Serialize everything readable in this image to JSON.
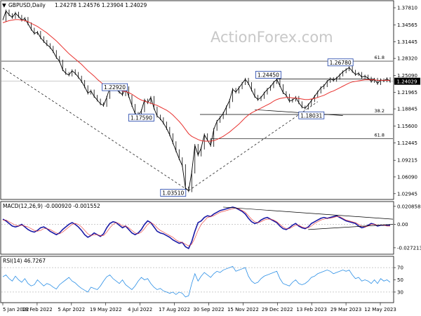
{
  "header": {
    "symbol": "GBPUSD,Daily",
    "ohlc": "1.24278 1.24576 1.23904 1.24029",
    "macd_label": "MACD(12,26,9) -0.000920 -0.001552",
    "rsi_label": "RSI(14) 46.7267"
  },
  "watermark": "ActionForex.com",
  "chart_data": [
    {
      "type": "line",
      "name": "price",
      "y_ticks": [
        "1.37810",
        "1.34565",
        "1.31445",
        "1.28320",
        "1.25090",
        "1.21965",
        "1.18845",
        "1.15600",
        "1.12445",
        "1.09215",
        "1.06090",
        "1.02945"
      ],
      "current_price": "1.24029",
      "ylim": [
        1.02,
        1.39
      ],
      "x_ticks": [
        "5 Jan 2022",
        "18 Feb 2022",
        "5 Apr 2022",
        "19 May 2022",
        "4 Jul 2022",
        "17 Aug 2022",
        "30 Sep 2022",
        "15 Nov 2022",
        "29 Dec 2022",
        "13 Feb 2023",
        "29 Mar 2023",
        "12 May 2023"
      ],
      "series": [
        {
          "values": [
            1.355,
            1.372,
            1.365,
            1.36,
            1.368,
            1.362,
            1.355,
            1.358,
            1.348,
            1.338,
            1.33,
            1.332,
            1.322,
            1.315,
            1.309,
            1.304,
            1.296,
            1.285,
            1.278,
            1.262,
            1.255,
            1.252,
            1.26,
            1.255,
            1.248,
            1.24,
            1.23,
            1.218,
            1.222,
            1.212,
            1.205,
            1.198,
            1.195,
            1.21,
            1.228,
            1.229,
            1.225,
            1.22,
            1.215,
            1.228,
            1.212,
            1.195,
            1.18,
            1.176,
            1.185,
            1.205,
            1.2,
            1.21,
            1.19,
            1.175,
            1.17,
            1.162,
            1.152,
            1.14,
            1.125,
            1.11,
            1.095,
            1.082,
            1.04,
            1.035,
            1.07,
            1.12,
            1.102,
            1.115,
            1.14,
            1.13,
            1.12,
            1.15,
            1.165,
            1.172,
            1.18,
            1.192,
            1.204,
            1.225,
            1.22,
            1.228,
            1.236,
            1.244,
            1.236,
            1.224,
            1.212,
            1.206,
            1.21,
            1.218,
            1.225,
            1.23,
            1.238,
            1.244,
            1.232,
            1.219,
            1.214,
            1.203,
            1.205,
            1.21,
            1.2,
            1.192,
            1.19,
            1.196,
            1.204,
            1.212,
            1.22,
            1.228,
            1.232,
            1.24,
            1.245,
            1.242,
            1.246,
            1.252,
            1.258,
            1.262,
            1.266,
            1.259,
            1.253,
            1.255,
            1.248,
            1.25,
            1.246,
            1.24,
            1.244,
            1.236,
            1.243,
            1.241,
            1.245,
            1.24
          ]
        },
        {
          "values": [
            1.35,
            1.352,
            1.354,
            1.355,
            1.356,
            1.356,
            1.355,
            1.354,
            1.352,
            1.349,
            1.346,
            1.343,
            1.339,
            1.335,
            1.331,
            1.326,
            1.321,
            1.316,
            1.31,
            1.304,
            1.298,
            1.292,
            1.287,
            1.282,
            1.277,
            1.272,
            1.266,
            1.26,
            1.255,
            1.25,
            1.244,
            1.239,
            1.234,
            1.23,
            1.228,
            1.226,
            1.225,
            1.224,
            1.222,
            1.221,
            1.219,
            1.216,
            1.212,
            1.208,
            1.205,
            1.203,
            1.201,
            1.199,
            1.197,
            1.195,
            1.192,
            1.189,
            1.186,
            1.182,
            1.177,
            1.171,
            1.165,
            1.158,
            1.15,
            1.142,
            1.137,
            1.134,
            1.131,
            1.129,
            1.128,
            1.128,
            1.128,
            1.129,
            1.131,
            1.134,
            1.137,
            1.141,
            1.145,
            1.15,
            1.155,
            1.16,
            1.166,
            1.172,
            1.177,
            1.181,
            1.184,
            1.187,
            1.19,
            1.193,
            1.196,
            1.199,
            1.203,
            1.206,
            1.208,
            1.209,
            1.21,
            1.21,
            1.209,
            1.209,
            1.208,
            1.207,
            1.206,
            1.206,
            1.207,
            1.208,
            1.21,
            1.212,
            1.214,
            1.217,
            1.22,
            1.222,
            1.225,
            1.228,
            1.231,
            1.234,
            1.237,
            1.239,
            1.24,
            1.241,
            1.242,
            1.243,
            1.243,
            1.243,
            1.243,
            1.242,
            1.242,
            1.242,
            1.242,
            1.242
          ]
        }
      ],
      "annotations": [
        {
          "text": "1.22920",
          "x_index": 36,
          "y": 1.2292
        },
        {
          "text": "1.17590",
          "x_index": 44,
          "y": 1.1759
        },
        {
          "text": "1.03510",
          "x_index": 59,
          "y": 1.0351
        },
        {
          "text": "1.24450",
          "x_index": 87,
          "y": 1.2445
        },
        {
          "text": "1.18031",
          "x_index": 98,
          "y": 1.1803
        },
        {
          "text": "1.26780",
          "x_index": 109,
          "y": 1.2678
        }
      ],
      "fib_levels": [
        {
          "text": "61.8",
          "y": 1.278
        },
        {
          "text": "38.2",
          "y": 1.178
        },
        {
          "text": "61.8",
          "y": 1.1325
        }
      ]
    },
    {
      "type": "line",
      "name": "macd",
      "y_ticks": [
        "0.020858",
        "0.00",
        "-0.027213"
      ],
      "ylim": [
        -0.033,
        0.024
      ],
      "series": [
        {
          "values": [
            0.006,
            0.004,
            0.001,
            -0.002,
            -0.003,
            -0.002,
            0.0,
            -0.003,
            -0.006,
            -0.008,
            -0.009,
            -0.007,
            -0.004,
            -0.003,
            -0.005,
            -0.008,
            -0.01,
            -0.012,
            -0.01,
            -0.006,
            -0.003,
            0.0,
            0.002,
            0.0,
            -0.003,
            -0.007,
            -0.012,
            -0.015,
            -0.013,
            -0.01,
            -0.012,
            -0.014,
            -0.011,
            -0.004,
            0.001,
            0.003,
            0.002,
            -0.001,
            -0.004,
            -0.002,
            -0.006,
            -0.01,
            -0.012,
            -0.01,
            -0.006,
            0.0,
            0.004,
            0.002,
            -0.003,
            -0.008,
            -0.01,
            -0.011,
            -0.013,
            -0.015,
            -0.018,
            -0.02,
            -0.022,
            -0.021,
            -0.026,
            -0.028,
            -0.02,
            -0.008,
            0.002,
            0.004,
            0.008,
            0.01,
            0.009,
            0.012,
            0.014,
            0.016,
            0.017,
            0.018,
            0.019,
            0.02,
            0.019,
            0.017,
            0.015,
            0.012,
            0.007,
            0.003,
            0.001,
            0.002,
            0.005,
            0.007,
            0.008,
            0.006,
            0.004,
            0.002,
            -0.002,
            -0.005,
            -0.006,
            -0.004,
            -0.001,
            0.001,
            -0.002,
            -0.004,
            -0.005,
            -0.003,
            0.001,
            0.003,
            0.005,
            0.007,
            0.008,
            0.007,
            0.008,
            0.009,
            0.01,
            0.008,
            0.006,
            0.004,
            0.003,
            0.002,
            0.001,
            -0.002,
            -0.004,
            -0.003,
            -0.001,
            0.001,
            0.0,
            -0.002,
            -0.001,
            -0.001,
            -0.001,
            -0.001
          ]
        },
        {
          "values": [
            0.005,
            0.005,
            0.003,
            0.001,
            -0.001,
            -0.002,
            -0.001,
            -0.002,
            -0.003,
            -0.005,
            -0.007,
            -0.008,
            -0.007,
            -0.005,
            -0.005,
            -0.006,
            -0.008,
            -0.01,
            -0.011,
            -0.009,
            -0.006,
            -0.003,
            0.0,
            0.001,
            0.0,
            -0.003,
            -0.007,
            -0.011,
            -0.013,
            -0.012,
            -0.012,
            -0.013,
            -0.013,
            -0.009,
            -0.004,
            0.0,
            0.002,
            0.001,
            -0.002,
            -0.002,
            -0.004,
            -0.007,
            -0.01,
            -0.011,
            -0.009,
            -0.005,
            0.0,
            0.002,
            0.0,
            -0.004,
            -0.007,
            -0.009,
            -0.011,
            -0.013,
            -0.015,
            -0.018,
            -0.02,
            -0.021,
            -0.023,
            -0.025,
            -0.023,
            -0.016,
            -0.007,
            0.0,
            0.004,
            0.008,
            0.009,
            0.01,
            0.012,
            0.014,
            0.015,
            0.016,
            0.017,
            0.018,
            0.019,
            0.018,
            0.016,
            0.014,
            0.01,
            0.006,
            0.003,
            0.002,
            0.003,
            0.005,
            0.006,
            0.006,
            0.005,
            0.003,
            0.0,
            -0.003,
            -0.005,
            -0.005,
            -0.003,
            -0.001,
            -0.001,
            -0.003,
            -0.004,
            -0.004,
            -0.002,
            0.001,
            0.003,
            0.005,
            0.006,
            0.007,
            0.007,
            0.008,
            0.009,
            0.009,
            0.007,
            0.005,
            0.004,
            0.003,
            0.002,
            0.0,
            -0.002,
            -0.003,
            -0.002,
            0.0,
            0.0,
            -0.001,
            -0.001,
            -0.001,
            -0.002,
            -0.002
          ]
        }
      ]
    },
    {
      "type": "line",
      "name": "rsi",
      "y_ticks": [
        "70",
        "50",
        "30"
      ],
      "ylim": [
        15,
        85
      ],
      "series": [
        {
          "values": [
            55,
            58,
            52,
            48,
            56,
            50,
            46,
            52,
            44,
            40,
            42,
            50,
            45,
            40,
            44,
            42,
            38,
            35,
            42,
            46,
            50,
            54,
            48,
            45,
            40,
            36,
            33,
            30,
            38,
            36,
            34,
            40,
            48,
            55,
            58,
            52,
            48,
            44,
            50,
            42,
            38,
            34,
            40,
            48,
            54,
            50,
            52,
            44,
            38,
            34,
            36,
            32,
            30,
            28,
            30,
            26,
            30,
            28,
            22,
            24,
            44,
            60,
            48,
            56,
            62,
            58,
            54,
            60,
            64,
            62,
            66,
            68,
            70,
            72,
            64,
            66,
            68,
            70,
            56,
            48,
            44,
            46,
            52,
            56,
            58,
            60,
            62,
            64,
            52,
            44,
            42,
            40,
            46,
            50,
            44,
            42,
            44,
            48,
            54,
            56,
            60,
            62,
            64,
            66,
            64,
            60,
            62,
            64,
            66,
            64,
            66,
            58,
            52,
            54,
            48,
            50,
            48,
            44,
            50,
            44,
            52,
            48,
            50,
            46
          ]
        }
      ],
      "guide_levels": [
        70,
        30
      ]
    }
  ]
}
